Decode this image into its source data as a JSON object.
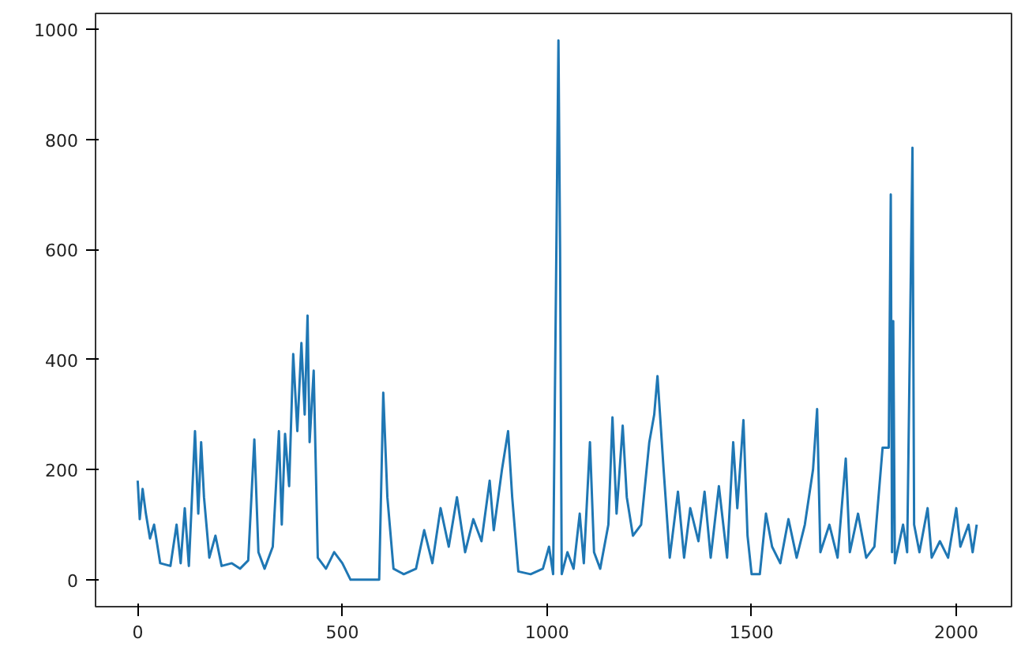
{
  "chart_data": {
    "type": "line",
    "xlim": [
      -103,
      2135
    ],
    "ylim": [
      -49,
      1029
    ],
    "xticks": [
      0,
      500,
      1000,
      1500,
      2000
    ],
    "yticks": [
      0,
      200,
      400,
      600,
      800,
      1000
    ],
    "grid": false,
    "line_style": "solid",
    "series": [
      {
        "color": "#1f77b4",
        "x": [
          0,
          5,
          12,
          20,
          30,
          40,
          55,
          80,
          95,
          105,
          115,
          125,
          140,
          148,
          155,
          162,
          175,
          190,
          205,
          230,
          250,
          270,
          285,
          295,
          310,
          330,
          345,
          352,
          360,
          370,
          380,
          390,
          400,
          408,
          415,
          420,
          430,
          440,
          460,
          480,
          500,
          520,
          590,
          600,
          610,
          625,
          650,
          680,
          700,
          720,
          740,
          760,
          780,
          800,
          820,
          840,
          860,
          870,
          890,
          905,
          915,
          930,
          960,
          990,
          1005,
          1015,
          1028,
          1032,
          1036,
          1050,
          1065,
          1080,
          1090,
          1105,
          1115,
          1130,
          1150,
          1160,
          1170,
          1185,
          1195,
          1210,
          1230,
          1250,
          1262,
          1270,
          1285,
          1300,
          1320,
          1335,
          1350,
          1370,
          1385,
          1400,
          1420,
          1440,
          1455,
          1465,
          1480,
          1490,
          1500,
          1520,
          1535,
          1550,
          1570,
          1590,
          1610,
          1630,
          1650,
          1660,
          1668,
          1690,
          1710,
          1730,
          1740,
          1760,
          1780,
          1800,
          1820,
          1835,
          1840,
          1843,
          1846,
          1850,
          1870,
          1880,
          1893,
          1897,
          1910,
          1930,
          1940,
          1960,
          1980,
          2000,
          2010,
          2030,
          2040,
          2050
        ],
        "values": [
          180,
          110,
          165,
          120,
          75,
          100,
          30,
          25,
          100,
          30,
          130,
          25,
          270,
          120,
          250,
          150,
          40,
          80,
          25,
          30,
          20,
          35,
          255,
          50,
          20,
          60,
          270,
          100,
          265,
          170,
          410,
          270,
          430,
          300,
          480,
          250,
          380,
          40,
          20,
          50,
          30,
          0,
          0,
          340,
          150,
          20,
          10,
          20,
          90,
          30,
          130,
          60,
          150,
          50,
          110,
          70,
          180,
          90,
          200,
          270,
          150,
          15,
          10,
          20,
          60,
          10,
          980,
          600,
          10,
          50,
          20,
          120,
          30,
          250,
          50,
          20,
          100,
          295,
          120,
          280,
          150,
          80,
          100,
          250,
          300,
          370,
          200,
          40,
          160,
          40,
          130,
          70,
          160,
          40,
          170,
          40,
          250,
          130,
          290,
          80,
          10,
          10,
          120,
          60,
          30,
          110,
          40,
          100,
          200,
          310,
          50,
          100,
          40,
          220,
          50,
          120,
          40,
          60,
          240,
          240,
          700,
          50,
          470,
          30,
          100,
          50,
          785,
          100,
          50,
          130,
          40,
          70,
          40,
          130,
          60,
          100,
          50,
          100
        ]
      }
    ]
  }
}
